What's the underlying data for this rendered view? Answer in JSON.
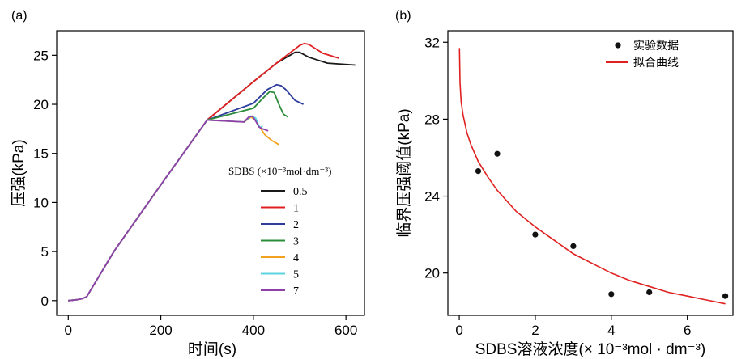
{
  "chart_data": [
    {
      "panel_label": "(a)",
      "type": "line",
      "xlabel": "时间(s)",
      "ylabel": "压强(kPa)",
      "xlim": [
        -25,
        640
      ],
      "ylim": [
        -1.5,
        27.5
      ],
      "xticks": [
        0,
        200,
        400,
        600
      ],
      "yticks": [
        0,
        5,
        10,
        15,
        20,
        25
      ],
      "legend_title": "SDBS (×10⁻³mol·dm⁻³)",
      "legend_position": "right-middle",
      "series": [
        {
          "name": "0.5",
          "color": "#1a1a1a",
          "x": [
            0,
            20,
            30,
            40,
            50,
            100,
            200,
            300,
            400,
            450,
            490,
            500,
            520,
            560,
            620
          ],
          "y": [
            0,
            0.1,
            0.2,
            0.4,
            1.2,
            5.1,
            11.8,
            18.4,
            22.3,
            24.2,
            25.3,
            25.3,
            24.8,
            24.2,
            24.0
          ]
        },
        {
          "name": "1",
          "color": "#e02020",
          "x": [
            0,
            20,
            30,
            40,
            50,
            100,
            200,
            300,
            400,
            450,
            500,
            510,
            520,
            550,
            585
          ],
          "y": [
            0,
            0.1,
            0.2,
            0.4,
            1.2,
            5.1,
            11.8,
            18.4,
            22.3,
            24.2,
            26.0,
            26.2,
            26.1,
            25.2,
            24.7
          ]
        },
        {
          "name": "2",
          "color": "#2e3d9c",
          "x": [
            0,
            20,
            30,
            40,
            50,
            100,
            200,
            300,
            400,
            430,
            450,
            460,
            470,
            490,
            508
          ],
          "y": [
            0,
            0.1,
            0.2,
            0.4,
            1.2,
            5.1,
            11.8,
            18.4,
            20.1,
            21.5,
            22.0,
            21.9,
            21.5,
            20.4,
            20.0
          ]
        },
        {
          "name": "3",
          "color": "#2b8c3a",
          "x": [
            0,
            20,
            30,
            40,
            50,
            100,
            200,
            300,
            400,
            420,
            435,
            445,
            455,
            465,
            475
          ],
          "y": [
            0,
            0.1,
            0.2,
            0.4,
            1.2,
            5.1,
            11.8,
            18.4,
            19.6,
            20.6,
            21.3,
            21.2,
            20.0,
            19.0,
            18.7
          ]
        },
        {
          "name": "4",
          "color": "#f2a21f",
          "x": [
            0,
            20,
            30,
            40,
            50,
            100,
            200,
            300,
            380,
            395,
            405,
            415,
            425,
            440,
            455
          ],
          "y": [
            0,
            0.1,
            0.2,
            0.4,
            1.2,
            5.1,
            11.8,
            18.4,
            18.2,
            18.7,
            18.4,
            17.6,
            16.9,
            16.3,
            15.9
          ]
        },
        {
          "name": "5",
          "color": "#5ed3e0",
          "x": [
            0,
            20,
            30,
            40,
            50,
            100,
            200,
            300,
            380,
            395,
            405,
            410,
            415,
            420
          ],
          "y": [
            0,
            0.1,
            0.2,
            0.4,
            1.2,
            5.1,
            11.8,
            18.4,
            18.2,
            18.8,
            18.6,
            18.0,
            17.6,
            17.8
          ]
        },
        {
          "name": "7",
          "color": "#8e3fa8",
          "x": [
            0,
            20,
            30,
            40,
            50,
            100,
            200,
            300,
            380,
            390,
            398,
            405,
            412,
            420,
            432
          ],
          "y": [
            0,
            0.1,
            0.2,
            0.4,
            1.2,
            5.1,
            11.8,
            18.4,
            18.2,
            18.7,
            18.8,
            18.3,
            17.7,
            17.5,
            17.3
          ]
        }
      ]
    },
    {
      "panel_label": "(b)",
      "type": "scatter",
      "xlabel": "SDBS溶液浓度(× 10⁻³mol · dm⁻³)",
      "ylabel": "临界压强阈值(kPa)",
      "xlim": [
        -0.3,
        7.2
      ],
      "ylim": [
        17.8,
        32.6
      ],
      "xticks": [
        0,
        2,
        4,
        6
      ],
      "yticks": [
        20,
        24,
        28,
        32
      ],
      "legend_position": "top-right",
      "series": [
        {
          "name": "实验数据",
          "kind": "points",
          "color": "#111111",
          "x": [
            0.5,
            1,
            2,
            3,
            4,
            5,
            7
          ],
          "y": [
            25.3,
            26.2,
            22.0,
            21.4,
            18.9,
            19.0,
            18.8
          ]
        },
        {
          "name": "拟合曲线",
          "kind": "line",
          "color": "#e02020",
          "x": [
            0.005,
            0.02,
            0.05,
            0.1,
            0.2,
            0.3,
            0.5,
            0.75,
            1,
            1.5,
            2,
            2.5,
            3,
            3.5,
            4,
            4.5,
            5,
            5.5,
            6,
            6.5,
            7
          ],
          "y": [
            31.7,
            29.9,
            28.9,
            28.2,
            27.3,
            26.7,
            25.8,
            25.0,
            24.3,
            23.2,
            22.4,
            21.7,
            21.0,
            20.5,
            20.0,
            19.6,
            19.3,
            19.0,
            18.8,
            18.6,
            18.4
          ]
        }
      ]
    }
  ]
}
